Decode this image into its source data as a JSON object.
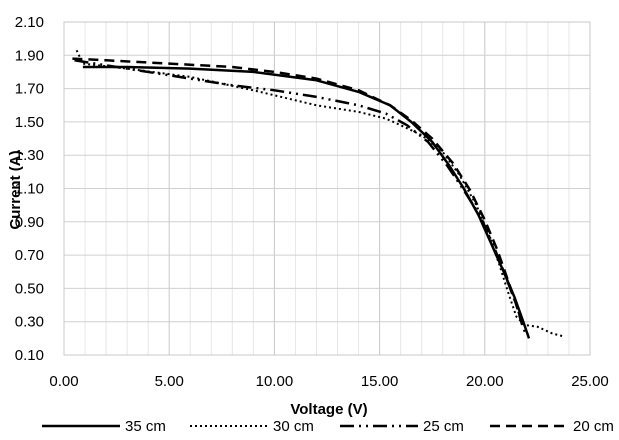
{
  "chart_data": {
    "type": "line",
    "title": "",
    "xlabel": "Voltage (V)",
    "ylabel": "Current (A)",
    "xlim": [
      0,
      25
    ],
    "ylim": [
      0.1,
      2.1
    ],
    "x_ticks": [
      "0.00",
      "5.00",
      "10.00",
      "15.00",
      "20.00",
      "25.00"
    ],
    "y_ticks": [
      "2.10",
      "1.90",
      "1.70",
      "1.50",
      "1.30",
      "1.10",
      "0.90",
      "0.70",
      "0.50",
      "0.30",
      "0.10"
    ],
    "grid": true,
    "legend_position": "bottom",
    "series": [
      {
        "name": "35 cm",
        "dash": "solid",
        "x": [
          0.9,
          3,
          6,
          9,
          12,
          14,
          15.5,
          16.5,
          17.5,
          18.3,
          19,
          19.7,
          20.3,
          20.9,
          21.4,
          21.8,
          22.1
        ],
        "y": [
          1.83,
          1.83,
          1.82,
          1.8,
          1.75,
          1.68,
          1.6,
          1.5,
          1.38,
          1.24,
          1.1,
          0.94,
          0.77,
          0.6,
          0.45,
          0.31,
          0.2
        ]
      },
      {
        "name": "30 cm",
        "dash": "dotted",
        "x": [
          0.6,
          0.9,
          3,
          6,
          9,
          12,
          14,
          15.3,
          16,
          17,
          18,
          18.8,
          19.6,
          20.2,
          20.7,
          21.1,
          21.5,
          21.9,
          22.5,
          23.2,
          23.8
        ],
        "y": [
          1.93,
          1.85,
          1.82,
          1.77,
          1.69,
          1.6,
          1.56,
          1.52,
          1.48,
          1.42,
          1.32,
          1.18,
          1.0,
          0.82,
          0.64,
          0.48,
          0.33,
          0.28,
          0.27,
          0.23,
          0.21
        ]
      },
      {
        "name": "25 cm",
        "dash": "dash-dot-dot",
        "x": [
          0.5,
          2,
          5,
          8,
          10,
          12,
          14,
          15.3,
          16.3,
          17.3,
          18.2,
          19,
          19.8,
          20.4,
          21,
          21.5,
          21.9
        ],
        "y": [
          1.87,
          1.84,
          1.78,
          1.72,
          1.69,
          1.65,
          1.6,
          1.55,
          1.48,
          1.38,
          1.24,
          1.09,
          0.93,
          0.76,
          0.57,
          0.4,
          0.24
        ]
      },
      {
        "name": "20 cm",
        "dash": "dashed",
        "x": [
          0.4,
          2,
          5,
          8,
          10,
          12,
          14,
          15.5,
          16.5,
          17.5,
          18.5,
          19.3,
          20,
          20.6,
          21.1,
          21.5,
          21.8
        ],
        "y": [
          1.88,
          1.87,
          1.85,
          1.83,
          1.8,
          1.76,
          1.69,
          1.6,
          1.51,
          1.4,
          1.25,
          1.09,
          0.91,
          0.73,
          0.55,
          0.4,
          0.27
        ]
      }
    ]
  }
}
